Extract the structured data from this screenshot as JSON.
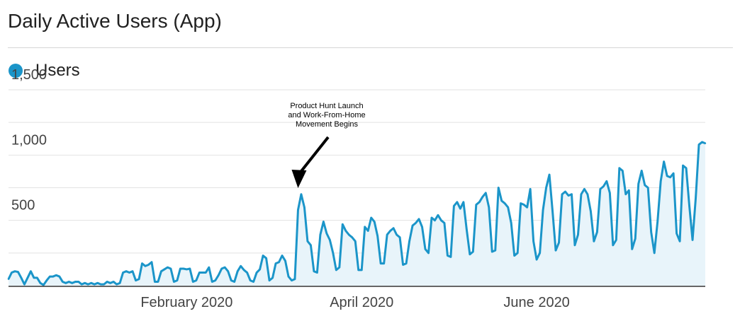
{
  "header": {
    "title": "Daily Active Users (App)"
  },
  "legend": {
    "label": "Users",
    "color": "#1b95c9"
  },
  "chart_data": {
    "type": "area",
    "title": "Daily Active Users (App)",
    "x_start": "2020-01-01",
    "x_ticks": [
      {
        "label": "February 2020",
        "index": 56
      },
      {
        "label": "April 2020",
        "index": 111
      },
      {
        "label": "June 2020",
        "index": 166
      }
    ],
    "y_ticks": [
      {
        "value": 500,
        "label": "500"
      },
      {
        "value": 1000,
        "label": "1,000"
      },
      {
        "value": 1500,
        "label": "1,500"
      }
    ],
    "ylim": [
      0,
      1500
    ],
    "grid": true,
    "legend_position": "top-left",
    "series": [
      {
        "name": "Users",
        "color": "#1b95c9",
        "fill": "#e8f4fa",
        "values": [
          50,
          100,
          110,
          105,
          60,
          10,
          60,
          110,
          60,
          60,
          20,
          5,
          40,
          70,
          70,
          80,
          70,
          30,
          20,
          30,
          20,
          30,
          30,
          10,
          20,
          10,
          20,
          10,
          20,
          10,
          10,
          30,
          20,
          30,
          10,
          20,
          100,
          110,
          100,
          110,
          40,
          50,
          170,
          150,
          160,
          180,
          30,
          30,
          110,
          125,
          140,
          130,
          30,
          40,
          130,
          130,
          125,
          130,
          30,
          40,
          100,
          100,
          100,
          140,
          30,
          40,
          80,
          130,
          140,
          110,
          40,
          30,
          110,
          150,
          120,
          100,
          40,
          30,
          100,
          125,
          230,
          210,
          40,
          60,
          170,
          180,
          230,
          190,
          70,
          40,
          50,
          580,
          700,
          600,
          340,
          310,
          110,
          100,
          390,
          490,
          400,
          350,
          250,
          120,
          140,
          470,
          420,
          390,
          370,
          340,
          120,
          120,
          450,
          420,
          520,
          490,
          380,
          170,
          170,
          390,
          420,
          440,
          390,
          370,
          160,
          170,
          340,
          460,
          480,
          510,
          450,
          280,
          250,
          520,
          500,
          540,
          500,
          480,
          230,
          220,
          610,
          640,
          590,
          640,
          430,
          240,
          260,
          620,
          640,
          680,
          710,
          600,
          260,
          270,
          750,
          650,
          630,
          600,
          480,
          230,
          250,
          630,
          620,
          600,
          740,
          340,
          200,
          250,
          580,
          750,
          850,
          570,
          270,
          330,
          700,
          720,
          690,
          700,
          310,
          390,
          700,
          740,
          700,
          570,
          340,
          410,
          740,
          760,
          800,
          710,
          310,
          350,
          900,
          880,
          700,
          730,
          280,
          360,
          780,
          880,
          770,
          750,
          410,
          250,
          490,
          800,
          950,
          840,
          830,
          860,
          400,
          340,
          920,
          900,
          610,
          350,
          670,
          1080,
          1100,
          1090
        ]
      }
    ],
    "annotation": {
      "lines": [
        "Product Hunt Launch",
        "and Work-From-Home",
        "Movement Begins"
      ],
      "index": 91
    }
  }
}
